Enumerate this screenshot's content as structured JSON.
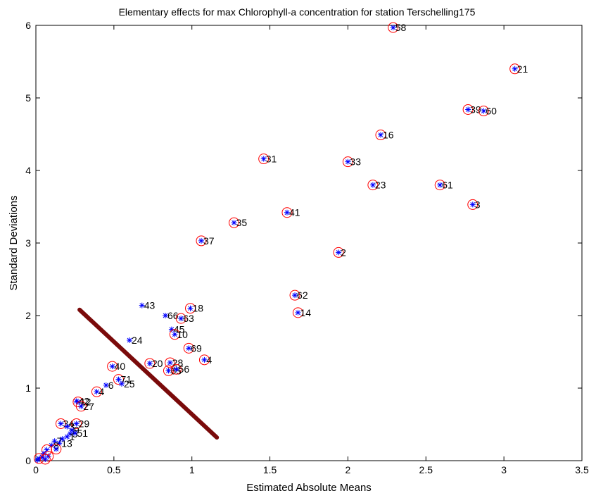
{
  "chart_data": {
    "type": "scatter",
    "title": "Elementary effects for max Chlorophyll-a concentration for station Terschelling175",
    "xlabel": "Estimated Absolute Means",
    "ylabel": "Standard Deviations",
    "xlim": [
      0,
      3.5
    ],
    "ylim": [
      0,
      6
    ],
    "xticks": [
      "0",
      "0.5",
      "1",
      "1.5",
      "2",
      "2.5",
      "3",
      "3.5"
    ],
    "yticks": [
      "0",
      "1",
      "2",
      "3",
      "4",
      "5",
      "6"
    ],
    "xtick_values": [
      0,
      0.5,
      1,
      1.5,
      2,
      2.5,
      3,
      3.5
    ],
    "ytick_values": [
      0,
      1,
      2,
      3,
      4,
      5,
      6
    ],
    "grid": false,
    "marker_color": "#0000ff",
    "circle_color": "#ff0000",
    "line_color": "#7a0a0a",
    "points": [
      {
        "label": "58",
        "x": 2.29,
        "y": 5.97,
        "circled": true
      },
      {
        "label": "21",
        "x": 3.07,
        "y": 5.4,
        "circled": true
      },
      {
        "label": "39",
        "x": 2.77,
        "y": 4.84,
        "circled": true
      },
      {
        "label": "60",
        "x": 2.87,
        "y": 4.82,
        "circled": true
      },
      {
        "label": "16",
        "x": 2.21,
        "y": 4.49,
        "circled": true
      },
      {
        "label": "31",
        "x": 1.46,
        "y": 4.16,
        "circled": true
      },
      {
        "label": "33",
        "x": 2.0,
        "y": 4.12,
        "circled": true
      },
      {
        "label": "23",
        "x": 2.16,
        "y": 3.8,
        "circled": true
      },
      {
        "label": "61",
        "x": 2.59,
        "y": 3.8,
        "circled": true
      },
      {
        "label": "3",
        "x": 2.8,
        "y": 3.53,
        "circled": true
      },
      {
        "label": "41",
        "x": 1.61,
        "y": 3.42,
        "circled": true
      },
      {
        "label": "35",
        "x": 1.27,
        "y": 3.28,
        "circled": true
      },
      {
        "label": "37",
        "x": 1.06,
        "y": 3.03,
        "circled": true
      },
      {
        "label": "2",
        "x": 1.94,
        "y": 2.87,
        "circled": true
      },
      {
        "label": "62",
        "x": 1.66,
        "y": 2.28,
        "circled": true
      },
      {
        "label": "14",
        "x": 1.68,
        "y": 2.04,
        "circled": true
      },
      {
        "label": "43",
        "x": 0.68,
        "y": 2.14,
        "circled": false
      },
      {
        "label": "18",
        "x": 0.99,
        "y": 2.1,
        "circled": true
      },
      {
        "label": "66",
        "x": 0.83,
        "y": 2.0,
        "circled": false
      },
      {
        "label": "63",
        "x": 0.93,
        "y": 1.96,
        "circled": true
      },
      {
        "label": "45",
        "x": 0.87,
        "y": 1.81,
        "circled": false
      },
      {
        "label": "10",
        "x": 0.89,
        "y": 1.74,
        "circled": true
      },
      {
        "label": "24",
        "x": 0.6,
        "y": 1.66,
        "circled": false
      },
      {
        "label": "69",
        "x": 0.98,
        "y": 1.55,
        "circled": true
      },
      {
        "label": "4",
        "x": 1.08,
        "y": 1.39,
        "circled": true
      },
      {
        "label": "20",
        "x": 0.73,
        "y": 1.34,
        "circled": true
      },
      {
        "label": "28",
        "x": 0.86,
        "y": 1.35,
        "circled": true
      },
      {
        "label": "65",
        "x": 0.85,
        "y": 1.24,
        "circled": true
      },
      {
        "label": "56",
        "x": 0.9,
        "y": 1.26,
        "circled": true
      },
      {
        "label": "40",
        "x": 0.49,
        "y": 1.3,
        "circled": true
      },
      {
        "label": "71",
        "x": 0.53,
        "y": 1.12,
        "circled": true
      },
      {
        "label": "25",
        "x": 0.55,
        "y": 1.06,
        "circled": false
      },
      {
        "label": "6",
        "x": 0.45,
        "y": 1.04,
        "circled": false
      },
      {
        "label": "4",
        "x": 0.39,
        "y": 0.95,
        "circled": true
      },
      {
        "label": "42",
        "x": 0.26,
        "y": 0.82,
        "circled": false
      },
      {
        "label": "12",
        "x": 0.27,
        "y": 0.81,
        "circled": true
      },
      {
        "label": "27",
        "x": 0.29,
        "y": 0.75,
        "circled": true
      },
      {
        "label": "34",
        "x": 0.16,
        "y": 0.51,
        "circled": true
      },
      {
        "label": "29",
        "x": 0.26,
        "y": 0.51,
        "circled": true
      },
      {
        "label": "3",
        "x": 0.2,
        "y": 0.47,
        "circled": false
      },
      {
        "label": "9",
        "x": 0.23,
        "y": 0.42,
        "circled": false
      },
      {
        "label": "5",
        "x": 0.22,
        "y": 0.37,
        "circled": false
      },
      {
        "label": "51",
        "x": 0.25,
        "y": 0.38,
        "circled": false
      },
      {
        "label": "1",
        "x": 0.2,
        "y": 0.33,
        "circled": false
      },
      {
        "label": "7",
        "x": 0.12,
        "y": 0.27,
        "circled": false
      },
      {
        "label": "13",
        "x": 0.15,
        "y": 0.24,
        "circled": false
      },
      {
        "label": "8",
        "x": 0.1,
        "y": 0.21,
        "circled": false
      },
      {
        "label": "",
        "x": 0.07,
        "y": 0.15,
        "circled": true
      },
      {
        "label": "",
        "x": 0.05,
        "y": 0.1,
        "circled": false
      },
      {
        "label": "",
        "x": 0.08,
        "y": 0.06,
        "circled": true
      },
      {
        "label": "",
        "x": 0.04,
        "y": 0.05,
        "circled": false
      },
      {
        "label": "",
        "x": 0.02,
        "y": 0.03,
        "circled": true
      },
      {
        "label": "",
        "x": 0.01,
        "y": 0.01,
        "circled": false
      },
      {
        "label": "",
        "x": 0.06,
        "y": 0.02,
        "circled": true
      },
      {
        "label": "",
        "x": 0.13,
        "y": 0.16,
        "circled": true
      },
      {
        "label": "",
        "x": 0.17,
        "y": 0.3,
        "circled": false
      }
    ],
    "reference_line": {
      "x": [
        0.28,
        1.16
      ],
      "y": [
        2.08,
        0.32
      ]
    }
  }
}
